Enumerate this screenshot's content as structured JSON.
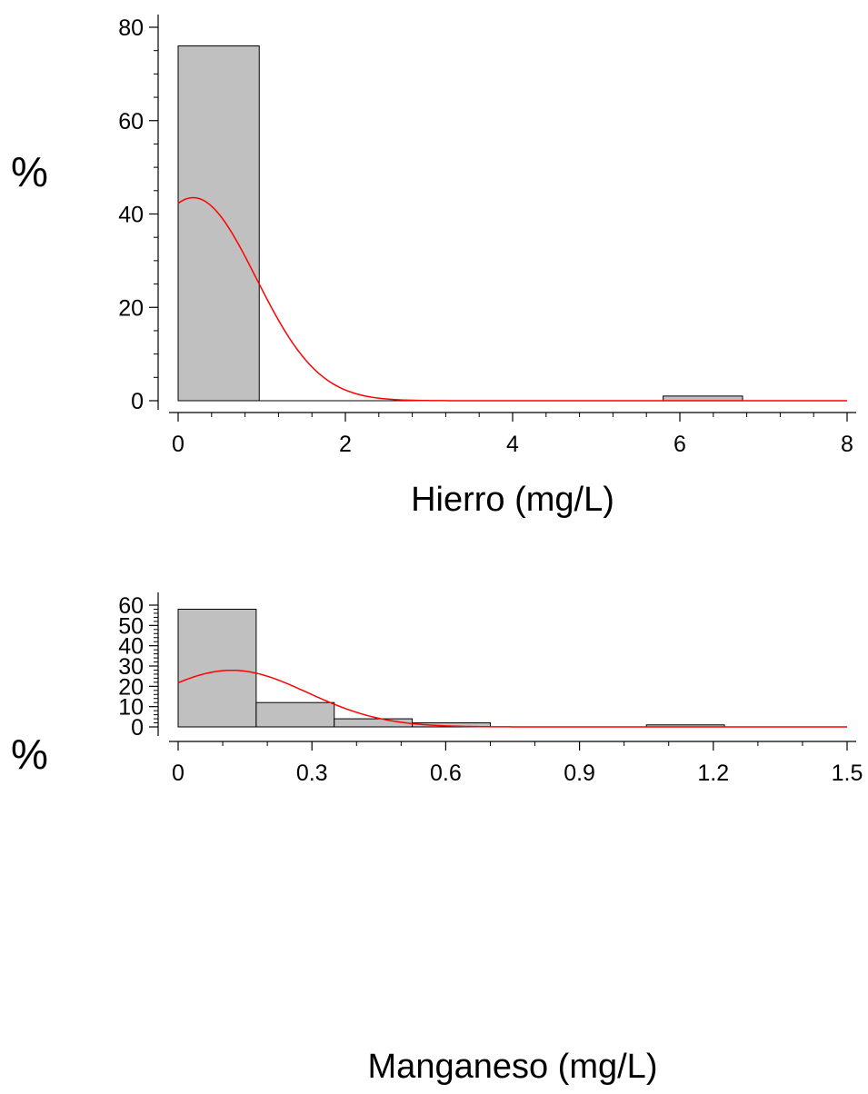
{
  "chart_data": [
    {
      "type": "bar",
      "subtype": "histogram-with-density-curve",
      "xlabel": "Hierro (mg/L)",
      "ylabel": "%",
      "xlim": [
        0,
        8
      ],
      "ylim": [
        0,
        80
      ],
      "x_ticks": [
        0,
        2,
        4,
        6,
        8
      ],
      "y_ticks": [
        0,
        20,
        40,
        60,
        80
      ],
      "x_tick_labels": [
        "0",
        "2",
        "4",
        "6",
        "8"
      ],
      "y_tick_labels": [
        "0",
        "20",
        "40",
        "60",
        "80"
      ],
      "bins": [
        {
          "start": 0,
          "end": 0.97,
          "value": 76
        },
        {
          "start": 5.8,
          "end": 6.75,
          "value": 1
        }
      ],
      "curve": {
        "mean": 0.18,
        "sd": 0.75,
        "peak": 43.5,
        "color": "#ff0000"
      },
      "bar_color": "#c0c0c0",
      "grid": false
    },
    {
      "type": "bar",
      "subtype": "histogram-with-density-curve",
      "xlabel": "Manganeso (mg/L)",
      "ylabel": "%",
      "xlim": [
        0,
        1.5
      ],
      "ylim": [
        0,
        60
      ],
      "x_ticks": [
        0,
        0.3,
        0.6,
        0.9,
        1.2,
        1.5
      ],
      "y_ticks": [
        0,
        10,
        20,
        30,
        40,
        50,
        60
      ],
      "x_tick_labels": [
        "0",
        "0.3",
        "0.6",
        "0.9",
        "1.2",
        "1.5"
      ],
      "y_tick_labels": [
        "0",
        "10",
        "20",
        "30",
        "40",
        "50",
        "60"
      ],
      "bins": [
        {
          "start": 0,
          "end": 0.175,
          "value": 58
        },
        {
          "start": 0.175,
          "end": 0.35,
          "value": 12
        },
        {
          "start": 0.35,
          "end": 0.525,
          "value": 4
        },
        {
          "start": 0.525,
          "end": 0.7,
          "value": 2
        },
        {
          "start": 1.05,
          "end": 1.225,
          "value": 1
        }
      ],
      "curve": {
        "mean": 0.12,
        "sd": 0.17,
        "peak": 27.9,
        "color": "#ff0000"
      },
      "bar_color": "#c0c0c0",
      "grid": false
    }
  ]
}
